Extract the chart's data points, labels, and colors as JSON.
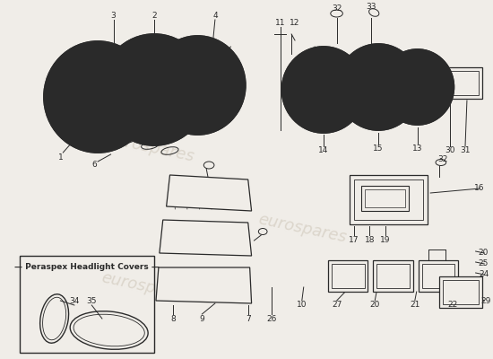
{
  "background_color": "#f0ede8",
  "watermark_text": "eurospares",
  "watermark_color": "#c8bfb0",
  "line_color": "#2a2a2a",
  "label_color": "#2a2a2a",
  "label_fontsize": 6.5,
  "fig_width": 5.5,
  "fig_height": 4.0,
  "dpi": 100
}
